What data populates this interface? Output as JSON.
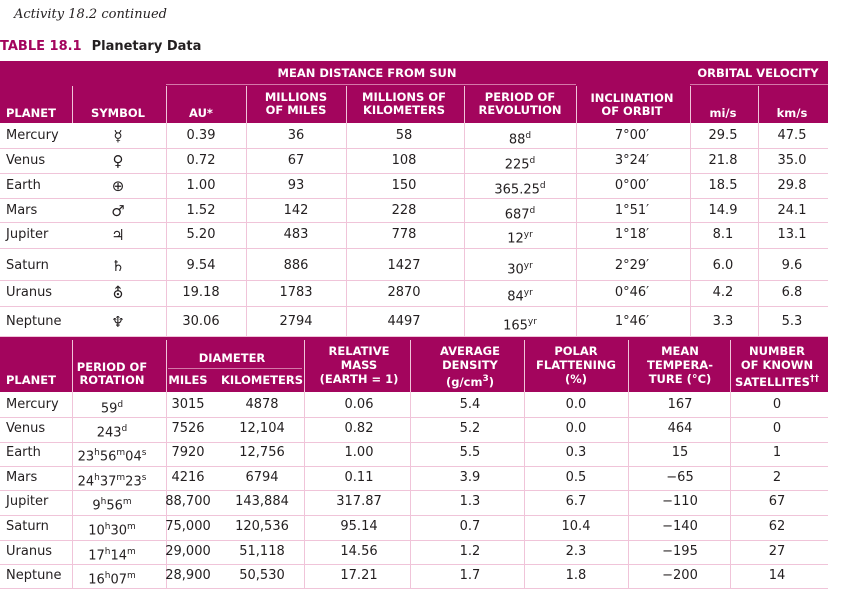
{
  "header": {
    "activity": "Activity 18.2 continued",
    "table_label": "TABLE 18.1",
    "table_title": "Planetary Data"
  },
  "colors": {
    "accent": "#a3055d",
    "rule": "#f0c4d9",
    "text": "#231f20"
  },
  "table1": {
    "group_headers": {
      "mean_distance": "MEAN DISTANCE FROM SUN",
      "orbital_velocity": "ORBITAL VELOCITY"
    },
    "columns": {
      "planet": "PLANET",
      "symbol": "SYMBOL",
      "au": "AU*",
      "miles_1": "MILLIONS",
      "miles_2": "OF MILES",
      "km_1": "MILLIONS OF",
      "km_2": "KILOMETERS",
      "period_1": "PERIOD OF",
      "period_2": "REVOLUTION",
      "incl_1": "INCLINATION",
      "incl_2": "OF ORBIT",
      "mis": "mi/s",
      "kms": "km/s"
    },
    "rows": [
      {
        "planet": "Mercury",
        "symbol": "☿",
        "au": "0.39",
        "miles": "36",
        "km": "58",
        "period_value": "88",
        "period_unit": "d",
        "inclination": "7°00′",
        "mis": "29.5",
        "kms": "47.5"
      },
      {
        "planet": "Venus",
        "symbol": "♀",
        "au": "0.72",
        "miles": "67",
        "km": "108",
        "period_value": "225",
        "period_unit": "d",
        "inclination": "3°24′",
        "mis": "21.8",
        "kms": "35.0"
      },
      {
        "planet": "Earth",
        "symbol": "⊕",
        "au": "1.00",
        "miles": "93",
        "km": "150",
        "period_value": "365.25",
        "period_unit": "d",
        "inclination": "0°00′",
        "mis": "18.5",
        "kms": "29.8"
      },
      {
        "planet": "Mars",
        "symbol": "♂",
        "au": "1.52",
        "miles": "142",
        "km": "228",
        "period_value": "687",
        "period_unit": "d",
        "inclination": "1°51′",
        "mis": "14.9",
        "kms": "24.1"
      },
      {
        "planet": "Jupiter",
        "symbol": "♃",
        "au": "5.20",
        "miles": "483",
        "km": "778",
        "period_value": "12",
        "period_unit": "yr",
        "inclination": "1°18′",
        "mis": "8.1",
        "kms": "13.1"
      },
      {
        "planet": "Saturn",
        "symbol": "♄",
        "au": "9.54",
        "miles": "886",
        "km": "1427",
        "period_value": "30",
        "period_unit": "yr",
        "inclination": "2°29′",
        "mis": "6.0",
        "kms": "9.6"
      },
      {
        "planet": "Uranus",
        "symbol": "⛢",
        "au": "19.18",
        "miles": "1783",
        "km": "2870",
        "period_value": "84",
        "period_unit": "yr",
        "inclination": "0°46′",
        "mis": "4.2",
        "kms": "6.8"
      },
      {
        "planet": "Neptune",
        "symbol": "♆",
        "au": "30.06",
        "miles": "2794",
        "km": "4497",
        "period_value": "165",
        "period_unit": "yr",
        "inclination": "1°46′",
        "mis": "3.3",
        "kms": "5.3"
      }
    ]
  },
  "table2": {
    "columns": {
      "planet": "PLANET",
      "rot_1": "PERIOD OF",
      "rot_2": "ROTATION",
      "diameter": "DIAMETER",
      "miles": "MILES",
      "km": "KILOMETERS",
      "mass_1": "RELATIVE",
      "mass_2": "MASS",
      "mass_3": "(EARTH = 1)",
      "dens_1": "AVERAGE",
      "dens_2": "DENSITY",
      "dens_3a": "(g/cm",
      "dens_3b": "3",
      "dens_3c": ")",
      "flat_1": "POLAR",
      "flat_2": "FLATTENING",
      "flat_3": "(%)",
      "temp_1": "MEAN",
      "temp_2": "TEMPERA-",
      "temp_3": "TURE (°C)",
      "sat_1": "NUMBER",
      "sat_2": "OF KNOWN",
      "sat_3": "SATELLITES",
      "sat_note": "††"
    },
    "rows": [
      {
        "planet": "Mercury",
        "rotation": [
          {
            "v": "59",
            "u": "d"
          }
        ],
        "miles": "3015",
        "km": "4878",
        "mass": "0.06",
        "density": "5.4",
        "flattening": "0.0",
        "temperature": "167",
        "satellites": "0"
      },
      {
        "planet": "Venus",
        "rotation": [
          {
            "v": "243",
            "u": "d"
          }
        ],
        "miles": "7526",
        "km": "12,104",
        "mass": "0.82",
        "density": "5.2",
        "flattening": "0.0",
        "temperature": "464",
        "satellites": "0"
      },
      {
        "planet": "Earth",
        "rotation": [
          {
            "v": "23",
            "u": "h"
          },
          {
            "v": "56",
            "u": "m"
          },
          {
            "v": "04",
            "u": "s"
          }
        ],
        "miles": "7920",
        "km": "12,756",
        "mass": "1.00",
        "density": "5.5",
        "flattening": "0.3",
        "temperature": "15",
        "satellites": "1"
      },
      {
        "planet": "Mars",
        "rotation": [
          {
            "v": "24",
            "u": "h"
          },
          {
            "v": "37",
            "u": "m"
          },
          {
            "v": "23",
            "u": "s"
          }
        ],
        "miles": "4216",
        "km": "6794",
        "mass": "0.11",
        "density": "3.9",
        "flattening": "0.5",
        "temperature": "−65",
        "satellites": "2"
      },
      {
        "planet": "Jupiter",
        "rotation": [
          {
            "v": "9",
            "u": "h"
          },
          {
            "v": "56",
            "u": "m"
          }
        ],
        "miles": "88,700",
        "km": "143,884",
        "mass": "317.87",
        "density": "1.3",
        "flattening": "6.7",
        "temperature": "−110",
        "satellites": "67"
      },
      {
        "planet": "Saturn",
        "rotation": [
          {
            "v": "10",
            "u": "h"
          },
          {
            "v": "30",
            "u": "m"
          }
        ],
        "miles": "75,000",
        "km": "120,536",
        "mass": "95.14",
        "density": "0.7",
        "flattening": "10.4",
        "temperature": "−140",
        "satellites": "62"
      },
      {
        "planet": "Uranus",
        "rotation": [
          {
            "v": "17",
            "u": "h"
          },
          {
            "v": "14",
            "u": "m"
          }
        ],
        "miles": "29,000",
        "km": "51,118",
        "mass": "14.56",
        "density": "1.2",
        "flattening": "2.3",
        "temperature": "−195",
        "satellites": "27"
      },
      {
        "planet": "Neptune",
        "rotation": [
          {
            "v": "16",
            "u": "h"
          },
          {
            "v": "07",
            "u": "m"
          }
        ],
        "miles": "28,900",
        "km": "50,530",
        "mass": "17.21",
        "density": "1.7",
        "flattening": "1.8",
        "temperature": "−200",
        "satellites": "14"
      }
    ]
  }
}
